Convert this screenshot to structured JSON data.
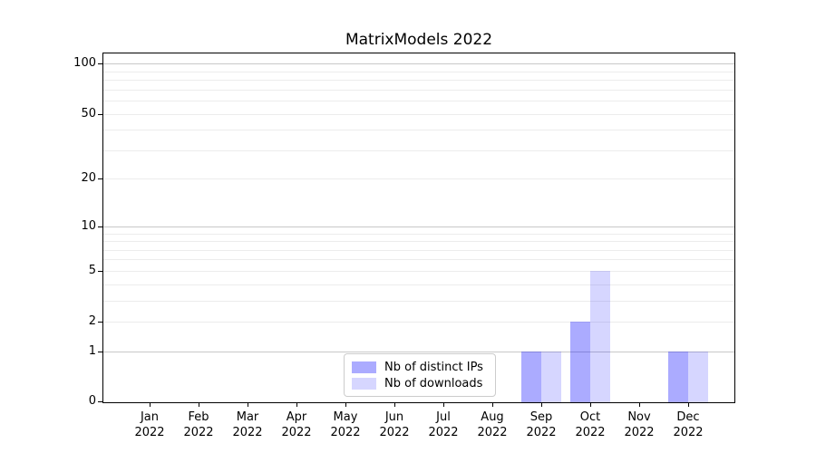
{
  "figure": {
    "background": "#ffffff"
  },
  "chart_data": {
    "type": "bar",
    "title": "MatrixModels 2022",
    "categories": [
      "Jan",
      "Feb",
      "Mar",
      "Apr",
      "May",
      "Jun",
      "Jul",
      "Aug",
      "Sep",
      "Oct",
      "Nov",
      "Dec"
    ],
    "x_year": "2022",
    "series": [
      {
        "name": "Nb of distinct IPs",
        "color": "#0000ff54",
        "values": [
          0,
          0,
          0,
          0,
          0,
          0,
          0,
          0,
          1,
          2,
          0,
          1
        ]
      },
      {
        "name": "Nb of downloads",
        "color": "#0000ff29",
        "values": [
          0,
          0,
          0,
          0,
          0,
          0,
          0,
          0,
          1,
          5,
          0,
          1
        ]
      }
    ],
    "xlabel": "",
    "ylabel": "",
    "yscale": "log1p",
    "y_ticks": [
      0,
      1,
      2,
      5,
      10,
      20,
      50,
      100
    ],
    "ylim": [
      0,
      115
    ],
    "grid": "both",
    "grid_major_values": [
      1,
      10,
      100
    ],
    "grid_minor_values": [
      2,
      3,
      4,
      5,
      6,
      7,
      8,
      9,
      20,
      30,
      40,
      50,
      60,
      70,
      80,
      90
    ],
    "grid_major_color": "#c8c8c8",
    "grid_minor_color": "#ececec",
    "axis_color": "#000000",
    "legend_position": "lower center"
  }
}
